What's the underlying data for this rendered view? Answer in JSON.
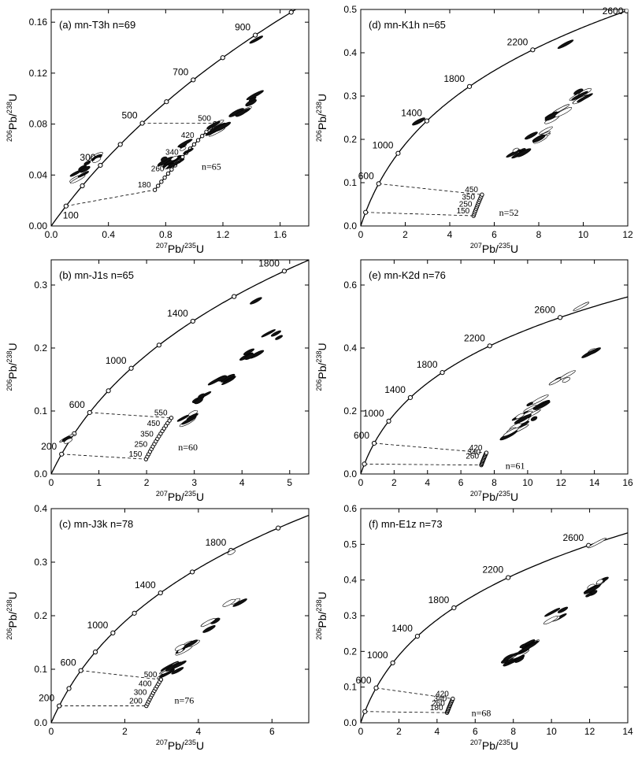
{
  "chart_data": [
    {
      "type": "scatter",
      "title": "(a) mn-T3h  n=69",
      "xlabel": "207Pb/235U",
      "ylabel": "206Pb/238U",
      "xlim": [
        0,
        1.8
      ],
      "ylim": [
        0,
        0.17
      ],
      "xticks": [
        "0.0",
        "0.4",
        "0.8",
        "1.2",
        "1.6"
      ],
      "yticks": [
        "0.00",
        "0.04",
        "0.08",
        "0.12",
        "0.16"
      ],
      "concordia": {
        "ticks_Ma": [
          100,
          200,
          300,
          400,
          500,
          600,
          700,
          800,
          900,
          1000
        ],
        "labels": [
          {
            "t": 100,
            "text": "100"
          },
          {
            "t": 300,
            "text": "300"
          },
          {
            "t": 500,
            "text": "500"
          },
          {
            "t": 700,
            "text": "700"
          },
          {
            "t": 900,
            "text": "900"
          }
        ]
      },
      "discordia": {
        "lower_Ma": 180,
        "upper_Ma": 500,
        "step_Ma": 20,
        "labels": [
          {
            "t": 180,
            "text": "180"
          },
          {
            "t": 260,
            "text": "260"
          },
          {
            "t": 340,
            "text": "340"
          },
          {
            "t": 420,
            "text": "420"
          },
          {
            "t": 500,
            "text": "500"
          }
        ],
        "n_label": "n=65"
      },
      "chords": [
        {
          "from": 100,
          "to": 180
        },
        {
          "from": 500,
          "to": 500
        }
      ],
      "ellipses": [
        {
          "x": 0.21,
          "y": 0.042,
          "n": 4
        },
        {
          "x": 0.27,
          "y": 0.047,
          "n": 3
        },
        {
          "x": 0.33,
          "y": 0.055,
          "n": 3
        },
        {
          "x": 0.83,
          "y": 0.05,
          "n": 10
        },
        {
          "x": 0.95,
          "y": 0.062,
          "n": 4
        },
        {
          "x": 1.18,
          "y": 0.078,
          "n": 6
        },
        {
          "x": 1.3,
          "y": 0.088,
          "n": 4
        },
        {
          "x": 1.45,
          "y": 0.1,
          "n": 3
        },
        {
          "x": 1.45,
          "y": 0.15,
          "n": 1
        }
      ]
    },
    {
      "type": "scatter",
      "title": "(b) mn-J1s  n=65",
      "xlabel": "207Pb/235U",
      "ylabel": "206Pb/238U",
      "xlim": [
        0,
        5.4
      ],
      "ylim": [
        0,
        0.34
      ],
      "xticks": [
        "0",
        "1",
        "2",
        "3",
        "4",
        "5"
      ],
      "yticks": [
        "0.0",
        "0.1",
        "0.2",
        "0.3"
      ],
      "concordia": {
        "ticks_Ma": [
          200,
          400,
          600,
          800,
          1000,
          1200,
          1400,
          1600,
          1800
        ],
        "labels": [
          {
            "t": 200,
            "text": "200"
          },
          {
            "t": 600,
            "text": "600"
          },
          {
            "t": 1000,
            "text": "1000"
          },
          {
            "t": 1400,
            "text": "1400"
          },
          {
            "t": 1800,
            "text": "1800"
          }
        ]
      },
      "discordia": {
        "lower_Ma": 150,
        "upper_Ma": 550,
        "step_Ma": 25,
        "labels": [
          {
            "t": 150,
            "text": "150"
          },
          {
            "t": 250,
            "text": "250"
          },
          {
            "t": 350,
            "text": "350"
          },
          {
            "t": 450,
            "text": "450"
          },
          {
            "t": 550,
            "text": "550"
          }
        ],
        "n_label": "n=60"
      },
      "chords": [
        {
          "from": 200,
          "to": 150
        },
        {
          "from": 600,
          "to": 550
        }
      ],
      "ellipses": [
        {
          "x": 0.45,
          "y": 0.06,
          "n": 3
        },
        {
          "x": 2.9,
          "y": 0.09,
          "n": 5
        },
        {
          "x": 3.2,
          "y": 0.12,
          "n": 5
        },
        {
          "x": 3.6,
          "y": 0.15,
          "n": 5
        },
        {
          "x": 4.2,
          "y": 0.19,
          "n": 4
        },
        {
          "x": 4.7,
          "y": 0.22,
          "n": 3
        },
        {
          "x": 4.4,
          "y": 0.28,
          "n": 1
        }
      ]
    },
    {
      "type": "scatter",
      "title": "(c) mn-J3k  n=78",
      "xlabel": "207Pb/235U",
      "ylabel": "206Pb/238U",
      "xlim": [
        0,
        7
      ],
      "ylim": [
        0,
        0.4
      ],
      "xticks": [
        "0",
        "2",
        "4",
        "6"
      ],
      "yticks": [
        "0.0",
        "0.1",
        "0.2",
        "0.3",
        "0.4"
      ],
      "concordia": {
        "ticks_Ma": [
          200,
          400,
          600,
          800,
          1000,
          1200,
          1400,
          1600,
          1800,
          2000
        ],
        "labels": [
          {
            "t": 200,
            "text": "200"
          },
          {
            "t": 600,
            "text": "600"
          },
          {
            "t": 1000,
            "text": "1000"
          },
          {
            "t": 1400,
            "text": "1400"
          },
          {
            "t": 1800,
            "text": "1800"
          }
        ]
      },
      "discordia": {
        "lower_Ma": 200,
        "upper_Ma": 500,
        "step_Ma": 25,
        "labels": [
          {
            "t": 200,
            "text": "200"
          },
          {
            "t": 300,
            "text": "300"
          },
          {
            "t": 400,
            "text": "400"
          },
          {
            "t": 500,
            "text": "500"
          }
        ],
        "n_label": "n=76"
      },
      "chords": [
        {
          "from": 200,
          "to": 200
        },
        {
          "from": 600,
          "to": 500
        }
      ],
      "ellipses": [
        {
          "x": 3.3,
          "y": 0.1,
          "n": 10
        },
        {
          "x": 3.7,
          "y": 0.14,
          "n": 8
        },
        {
          "x": 4.3,
          "y": 0.18,
          "n": 4
        },
        {
          "x": 5.0,
          "y": 0.23,
          "n": 3
        },
        {
          "x": 5.1,
          "y": 0.32,
          "n": 1
        }
      ]
    },
    {
      "type": "scatter",
      "title": "(d) mn-K1h  n=65",
      "xlabel": "207Pb/235U",
      "ylabel": "206Pb/238U",
      "xlim": [
        0,
        12
      ],
      "ylim": [
        0,
        0.5
      ],
      "xticks": [
        "0",
        "2",
        "4",
        "6",
        "8",
        "10",
        "12"
      ],
      "yticks": [
        "0.0",
        "0.1",
        "0.2",
        "0.3",
        "0.4",
        "0.5"
      ],
      "concordia": {
        "ticks_Ma": [
          200,
          600,
          1000,
          1400,
          1800,
          2200,
          2600
        ],
        "labels": [
          {
            "t": 600,
            "text": "600"
          },
          {
            "t": 1000,
            "text": "1000"
          },
          {
            "t": 1400,
            "text": "1400"
          },
          {
            "t": 1800,
            "text": "1800"
          },
          {
            "t": 2200,
            "text": "2200"
          },
          {
            "t": 2600,
            "text": "2600"
          }
        ]
      },
      "discordia": {
        "lower_Ma": 150,
        "upper_Ma": 450,
        "step_Ma": 25,
        "labels": [
          {
            "t": 150,
            "text": "150"
          },
          {
            "t": 250,
            "text": "250"
          },
          {
            "t": 350,
            "text": "350"
          },
          {
            "t": 450,
            "text": "450"
          }
        ],
        "n_label": "n=52"
      },
      "chords": [
        {
          "from": 200,
          "to": 150
        },
        {
          "from": 600,
          "to": 450
        }
      ],
      "ellipses": [
        {
          "x": 7.2,
          "y": 0.17,
          "n": 6
        },
        {
          "x": 8.0,
          "y": 0.21,
          "n": 6
        },
        {
          "x": 8.8,
          "y": 0.26,
          "n": 8
        },
        {
          "x": 9.8,
          "y": 0.3,
          "n": 8
        },
        {
          "x": 2.8,
          "y": 0.26,
          "n": 1
        },
        {
          "x": 8.9,
          "y": 0.41,
          "n": 1
        }
      ]
    },
    {
      "type": "scatter",
      "title": "(e) mn-K2d  n=76",
      "xlabel": "207Pb/235U",
      "ylabel": "206Pb/238U",
      "xlim": [
        0,
        16
      ],
      "ylim": [
        0,
        0.68
      ],
      "xticks": [
        "0",
        "2",
        "4",
        "6",
        "8",
        "10",
        "12",
        "14",
        "16"
      ],
      "yticks": [
        "0.0",
        "0.2",
        "0.4",
        "0.6"
      ],
      "concordia": {
        "ticks_Ma": [
          200,
          600,
          1000,
          1400,
          1800,
          2200,
          2600,
          3000
        ],
        "labels": [
          {
            "t": 600,
            "text": "600"
          },
          {
            "t": 1000,
            "text": "1000"
          },
          {
            "t": 1400,
            "text": "1400"
          },
          {
            "t": 1800,
            "text": "1800"
          },
          {
            "t": 2200,
            "text": "2200"
          },
          {
            "t": 2600,
            "text": "2600"
          }
        ]
      },
      "discordia": {
        "lower_Ma": 180,
        "upper_Ma": 420,
        "step_Ma": 20,
        "labels": [
          {
            "t": 260,
            "text": "260"
          },
          {
            "t": 340,
            "text": "340"
          },
          {
            "t": 420,
            "text": "420"
          }
        ],
        "n_label": "n=61"
      },
      "chords": [
        {
          "from": 200,
          "to": 180
        },
        {
          "from": 600,
          "to": 420
        }
      ],
      "ellipses": [
        {
          "x": 9.3,
          "y": 0.14,
          "n": 6
        },
        {
          "x": 10.0,
          "y": 0.18,
          "n": 10
        },
        {
          "x": 10.6,
          "y": 0.22,
          "n": 5
        },
        {
          "x": 12.0,
          "y": 0.3,
          "n": 4
        },
        {
          "x": 13.8,
          "y": 0.38,
          "n": 3
        },
        {
          "x": 13.3,
          "y": 0.52,
          "n": 1
        }
      ]
    },
    {
      "type": "scatter",
      "title": "(f) mn-E1z n=73",
      "xlabel": "207Pb/235U",
      "ylabel": "206Pb/238U",
      "xlim": [
        0,
        14
      ],
      "ylim": [
        0,
        0.6
      ],
      "xticks": [
        "0",
        "2",
        "4",
        "6",
        "8",
        "10",
        "12",
        "14"
      ],
      "yticks": [
        "0.0",
        "0.1",
        "0.2",
        "0.3",
        "0.4",
        "0.5",
        "0.6"
      ],
      "concordia": {
        "ticks_Ma": [
          200,
          600,
          1000,
          1400,
          1800,
          2200,
          2600
        ],
        "labels": [
          {
            "t": 600,
            "text": "600"
          },
          {
            "t": 1000,
            "text": "1000"
          },
          {
            "t": 1400,
            "text": "1400"
          },
          {
            "t": 1800,
            "text": "1800"
          },
          {
            "t": 2200,
            "text": "2200"
          },
          {
            "t": 2600,
            "text": "2600"
          }
        ]
      },
      "discordia": {
        "lower_Ma": 180,
        "upper_Ma": 420,
        "step_Ma": 20,
        "labels": [
          {
            "t": 180,
            "text": "180"
          },
          {
            "t": 260,
            "text": "260"
          },
          {
            "t": 340,
            "text": "340"
          },
          {
            "t": 420,
            "text": "420"
          }
        ],
        "n_label": "n=68"
      },
      "chords": [
        {
          "from": 200,
          "to": 180
        },
        {
          "from": 600,
          "to": 420
        }
      ],
      "ellipses": [
        {
          "x": 8.0,
          "y": 0.18,
          "n": 12
        },
        {
          "x": 8.9,
          "y": 0.22,
          "n": 8
        },
        {
          "x": 10.3,
          "y": 0.3,
          "n": 5
        },
        {
          "x": 12.0,
          "y": 0.37,
          "n": 5
        },
        {
          "x": 12.5,
          "y": 0.4,
          "n": 3
        },
        {
          "x": 12.1,
          "y": 0.5,
          "n": 1
        }
      ]
    }
  ]
}
